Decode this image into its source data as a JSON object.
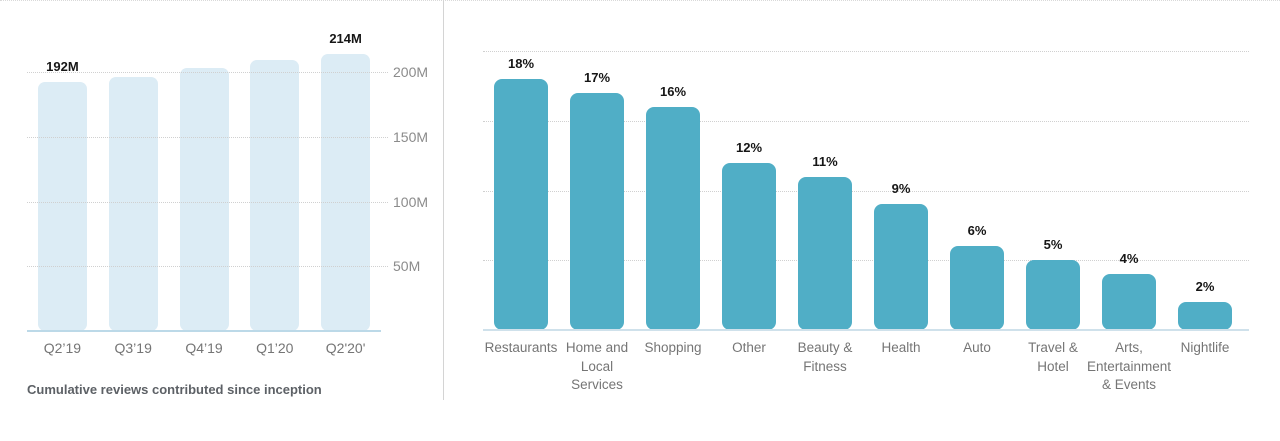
{
  "colors": {
    "left_bar": "#dcecf5",
    "left_baseline": "#bcd9e8",
    "right_bar": "#50aec6",
    "right_baseline": "#cfe1eb",
    "gridline": "#d0d0d0",
    "axis_text": "#757575",
    "tick_text": "#8b8b8b",
    "value_text": "#161616",
    "caption_text": "#5d6166"
  },
  "chart_data": [
    {
      "type": "bar",
      "title": "",
      "caption": "Cumulative reviews contributed since inception",
      "categories": [
        "Q2’19",
        "Q3’19",
        "Q4’19",
        "Q1’20",
        "Q2'20'"
      ],
      "category_display": [
        "Q2’19",
        "Q3’19",
        "Q4’19",
        "Q1’20",
        "Q2'20'"
      ],
      "values": [
        192,
        196,
        203,
        209,
        214
      ],
      "value_labels": [
        "192M",
        "",
        "",
        "",
        "214M"
      ],
      "unit": "M reviews",
      "xlabel": "",
      "ylabel": "",
      "ylim": [
        0,
        225
      ],
      "y_tick_values": [
        50,
        100,
        150,
        200
      ],
      "y_tick_labels": [
        "50M",
        "100M",
        "150M",
        "200M"
      ],
      "grid": "on",
      "legend": "none"
    },
    {
      "type": "bar",
      "title": "",
      "caption": "",
      "categories": [
        "Restaurants",
        "Home and Local Services",
        "Shopping",
        "Other",
        "Beauty & Fitness",
        "Health",
        "Auto",
        "Travel & Hotel",
        "Arts, Entertainment & Events",
        "Nightlife"
      ],
      "category_display": [
        "Restaurants",
        "Home and\nLocal\nServices",
        "Shopping",
        "Other",
        "Beauty &\nFitness",
        "Health",
        "Auto",
        "Travel &\nHotel",
        "Arts,\nEntertainment\n& Events",
        "Nightlife"
      ],
      "values": [
        18,
        17,
        16,
        12,
        11,
        9,
        6,
        5,
        4,
        2
      ],
      "value_labels": [
        "18%",
        "17%",
        "16%",
        "12%",
        "11%",
        "9%",
        "6%",
        "5%",
        "4%",
        "2%"
      ],
      "unit": "%",
      "xlabel": "",
      "ylabel": "",
      "ylim": [
        0,
        20
      ],
      "y_tick_values": [
        5,
        10,
        15,
        20
      ],
      "y_tick_labels": [
        "",
        "",
        "",
        ""
      ],
      "grid": "on",
      "legend": "none"
    }
  ]
}
